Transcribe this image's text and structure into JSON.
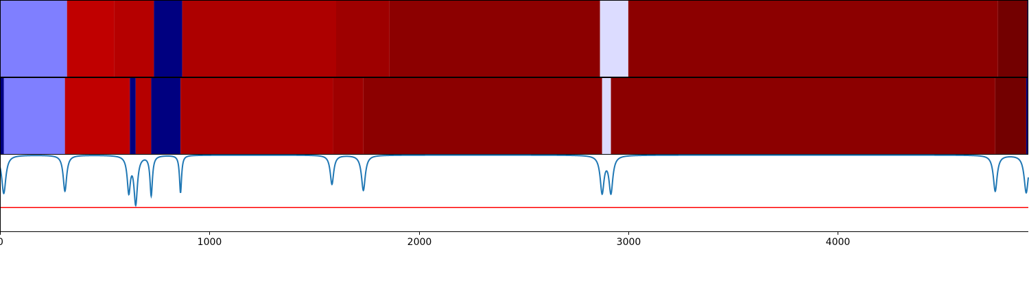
{
  "chart_data": [
    {
      "type": "heatmap",
      "title": "",
      "xlim": [
        0,
        4910
      ],
      "segments": [
        {
          "start": 0,
          "end": 320,
          "color": "#7f7fff"
        },
        {
          "start": 320,
          "end": 545,
          "color": "#c00000"
        },
        {
          "start": 545,
          "end": 735,
          "color": "#b50000"
        },
        {
          "start": 735,
          "end": 870,
          "color": "#000080"
        },
        {
          "start": 870,
          "end": 1605,
          "color": "#ad0000"
        },
        {
          "start": 1605,
          "end": 1860,
          "color": "#9e0000"
        },
        {
          "start": 1860,
          "end": 2865,
          "color": "#8c0000"
        },
        {
          "start": 2865,
          "end": 3000,
          "color": "#dcdcff"
        },
        {
          "start": 3000,
          "end": 4765,
          "color": "#8c0000"
        },
        {
          "start": 4765,
          "end": 4905,
          "color": "#730000"
        },
        {
          "start": 4905,
          "end": 4910,
          "color": "#000080"
        }
      ]
    },
    {
      "type": "heatmap",
      "title": "",
      "xlim": [
        0,
        4910
      ],
      "segments": [
        {
          "start": 0,
          "end": 18,
          "color": "#000080"
        },
        {
          "start": 18,
          "end": 310,
          "color": "#7f7fff"
        },
        {
          "start": 310,
          "end": 620,
          "color": "#c00000"
        },
        {
          "start": 620,
          "end": 648,
          "color": "#000080"
        },
        {
          "start": 648,
          "end": 722,
          "color": "#b50000"
        },
        {
          "start": 722,
          "end": 862,
          "color": "#000080"
        },
        {
          "start": 862,
          "end": 1590,
          "color": "#ad0000"
        },
        {
          "start": 1590,
          "end": 1735,
          "color": "#9e0000"
        },
        {
          "start": 1735,
          "end": 2875,
          "color": "#8c0000"
        },
        {
          "start": 2875,
          "end": 2917,
          "color": "#dcdcff"
        },
        {
          "start": 2917,
          "end": 4752,
          "color": "#8c0000"
        },
        {
          "start": 4752,
          "end": 4900,
          "color": "#730000"
        },
        {
          "start": 4900,
          "end": 4910,
          "color": "#000080"
        }
      ]
    },
    {
      "type": "line",
      "xlim": [
        0,
        4910
      ],
      "ylim": [
        0,
        1
      ],
      "xticks": [
        0,
        1000,
        2000,
        3000,
        4000
      ],
      "xtick_labels": [
        "0",
        "1000",
        "2000",
        "3000",
        "4000"
      ],
      "hline": {
        "y": 0.31,
        "color": "#ff0000"
      },
      "series": [
        {
          "color": "#1f77b4",
          "baseline": 0.995,
          "dips": [
            {
              "x": 18,
              "depth": 0.5,
              "width": 12
            },
            {
              "x": 310,
              "depth": 0.47,
              "width": 10
            },
            {
              "x": 615,
              "depth": 0.46,
              "width": 9
            },
            {
              "x": 648,
              "depth": 0.62,
              "width": 10
            },
            {
              "x": 722,
              "depth": 0.52,
              "width": 7
            },
            {
              "x": 862,
              "depth": 0.49,
              "width": 6
            },
            {
              "x": 1585,
              "depth": 0.38,
              "width": 10
            },
            {
              "x": 1735,
              "depth": 0.46,
              "width": 11
            },
            {
              "x": 2875,
              "depth": 0.48,
              "width": 11
            },
            {
              "x": 2917,
              "depth": 0.48,
              "width": 11
            },
            {
              "x": 4752,
              "depth": 0.47,
              "width": 11
            },
            {
              "x": 4900,
              "depth": 0.49,
              "width": 12
            }
          ]
        }
      ]
    }
  ]
}
